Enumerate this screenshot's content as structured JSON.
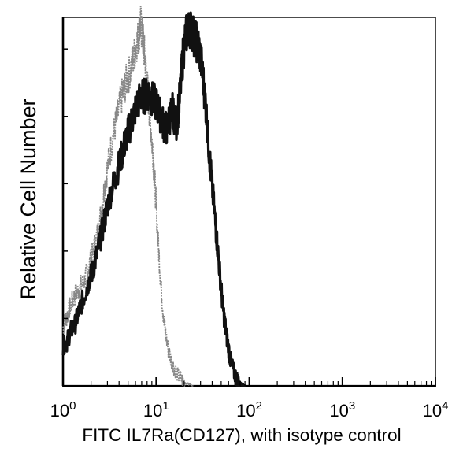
{
  "chart_data": {
    "type": "line",
    "title": "",
    "xlabel": "FITC IL7Ra(CD127), with isotype control",
    "ylabel": "Relative Cell Number",
    "xscale": "log",
    "xlim": [
      1,
      10000
    ],
    "ylim": [
      0,
      100
    ],
    "xticks": [
      {
        "value": 1,
        "base": "10",
        "exp": "0"
      },
      {
        "value": 10,
        "base": "10",
        "exp": "1"
      },
      {
        "value": 100,
        "base": "10",
        "exp": "2"
      },
      {
        "value": 1000,
        "base": "10",
        "exp": "3"
      },
      {
        "value": 10000,
        "base": "10",
        "exp": "4"
      }
    ],
    "ytick_count": 5,
    "grid": false,
    "series": [
      {
        "color": "#888888",
        "points": [
          [
            1.0,
            16
          ],
          [
            1.1,
            19
          ],
          [
            1.2,
            22
          ],
          [
            1.35,
            25
          ],
          [
            1.5,
            27
          ],
          [
            1.7,
            29
          ],
          [
            1.9,
            33
          ],
          [
            2.1,
            37
          ],
          [
            2.4,
            43
          ],
          [
            2.7,
            52
          ],
          [
            3.0,
            60
          ],
          [
            3.4,
            68
          ],
          [
            3.8,
            74
          ],
          [
            4.3,
            80
          ],
          [
            4.8,
            84
          ],
          [
            5.4,
            88
          ],
          [
            6.0,
            93
          ],
          [
            6.5,
            97
          ],
          [
            6.8,
            100
          ],
          [
            7.2,
            96
          ],
          [
            7.6,
            90
          ],
          [
            8.1,
            82
          ],
          [
            8.6,
            74
          ],
          [
            9.2,
            65
          ],
          [
            9.8,
            54
          ],
          [
            10.5,
            40
          ],
          [
            11.3,
            27
          ],
          [
            12.2,
            17
          ],
          [
            13.5,
            10
          ],
          [
            15.0,
            6
          ],
          [
            17.0,
            3
          ],
          [
            19.5,
            1.5
          ],
          [
            22.0,
            0.5
          ],
          [
            25.0,
            0
          ]
        ]
      },
      {
        "color": "#111111",
        "points": [
          [
            1.0,
            11
          ],
          [
            1.1,
            12
          ],
          [
            1.2,
            15
          ],
          [
            1.35,
            17
          ],
          [
            1.5,
            21
          ],
          [
            1.7,
            25
          ],
          [
            1.9,
            29
          ],
          [
            2.1,
            32
          ],
          [
            2.4,
            38
          ],
          [
            2.7,
            44
          ],
          [
            3.0,
            50
          ],
          [
            3.5,
            56
          ],
          [
            4.0,
            61
          ],
          [
            4.5,
            66
          ],
          [
            5.0,
            70
          ],
          [
            5.6,
            74
          ],
          [
            6.3,
            78
          ],
          [
            7.0,
            80
          ],
          [
            7.7,
            80
          ],
          [
            8.4,
            81
          ],
          [
            9.2,
            79
          ],
          [
            10.0,
            78
          ],
          [
            11.0,
            75
          ],
          [
            12.0,
            72
          ],
          [
            13.0,
            71
          ],
          [
            14.0,
            74
          ],
          [
            15.0,
            76
          ],
          [
            16.5,
            72
          ],
          [
            18.0,
            80
          ],
          [
            19.5,
            92
          ],
          [
            21.0,
            97
          ],
          [
            23.0,
            99
          ],
          [
            25.0,
            97
          ],
          [
            27.0,
            95
          ],
          [
            29.0,
            93
          ],
          [
            31.0,
            88
          ],
          [
            34.0,
            78
          ],
          [
            37.0,
            65
          ],
          [
            40.0,
            55
          ],
          [
            44.0,
            43
          ],
          [
            48.0,
            32
          ],
          [
            52.0,
            22
          ],
          [
            57.0,
            14
          ],
          [
            62.0,
            8
          ],
          [
            68.0,
            4
          ],
          [
            75.0,
            1.5
          ],
          [
            82.0,
            0.5
          ],
          [
            90.0,
            0
          ]
        ]
      }
    ]
  }
}
